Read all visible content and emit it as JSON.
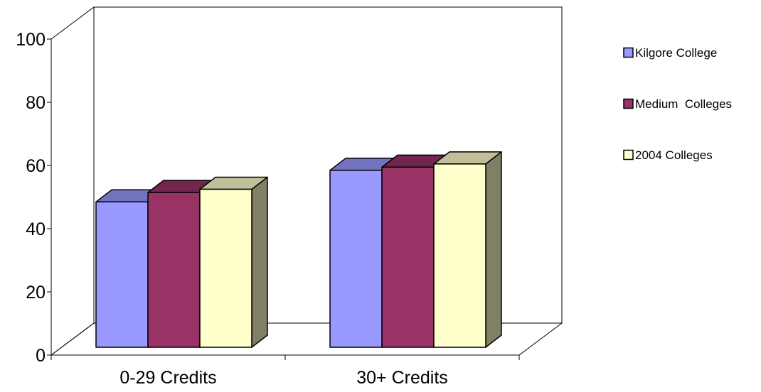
{
  "chart_data": {
    "type": "bar",
    "categories": [
      "0-29 Credits",
      "30+ Credits"
    ],
    "series": [
      {
        "name": "Kilgore College",
        "values": [
          46,
          56
        ],
        "color": "#9999ff",
        "top_color": "#7373bf",
        "side_color": "#5c5c99"
      },
      {
        "name": "Medium  Colleges",
        "values": [
          49,
          57
        ],
        "color": "#993366",
        "top_color": "#73264d",
        "side_color": "#5c1f3d"
      },
      {
        "name": "2004 Colleges",
        "values": [
          50,
          58
        ],
        "color": "#ffffcc",
        "top_color": "#bfbf99",
        "side_color": "#808066"
      }
    ],
    "y_ticks": [
      "0",
      "20",
      "40",
      "60",
      "80",
      "100"
    ],
    "ylim": [
      0,
      100
    ],
    "legend_position": "right",
    "grid": false,
    "three_d": true
  }
}
